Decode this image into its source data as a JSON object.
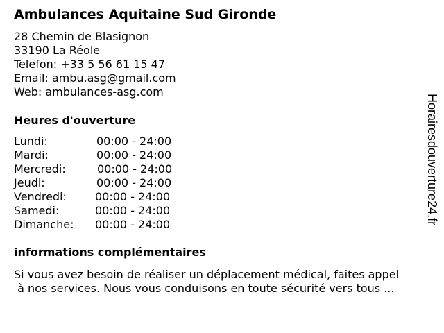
{
  "title": "Ambulances Aquitaine Sud Gironde",
  "address": [
    "28 Chemin de Blasignon",
    "33190 La Réole",
    "Telefon: +33 5 56 61 15 47",
    "Email: ambu.asg@gmail.com",
    "Web: ambulances-asg.com"
  ],
  "hours_heading": "Heures d'ouverture",
  "hours": [
    {
      "day": "Lundi:",
      "time": "00:00 - 24:00"
    },
    {
      "day": "Mardi:",
      "time": "00:00 - 24:00"
    },
    {
      "day": "Mercredi:",
      "time": "00:00 - 24:00"
    },
    {
      "day": "Jeudi:",
      "time": "00:00 - 24:00"
    },
    {
      "day": "Vendredi:",
      "time": "00:00 - 24:00"
    },
    {
      "day": "Samedi:",
      "time": "00:00 - 24:00"
    },
    {
      "day": "Dimanche:",
      "time": "00:00 - 24:00"
    }
  ],
  "info_heading": "informations complémentaires",
  "info_lines": [
    "Si vous avez besoin de réaliser un déplacement médical, faites appel",
    " à nos services. Nous vous conduisons en toute sécurité vers tous ..."
  ],
  "watermark": "Horairesdouverture24.fr"
}
